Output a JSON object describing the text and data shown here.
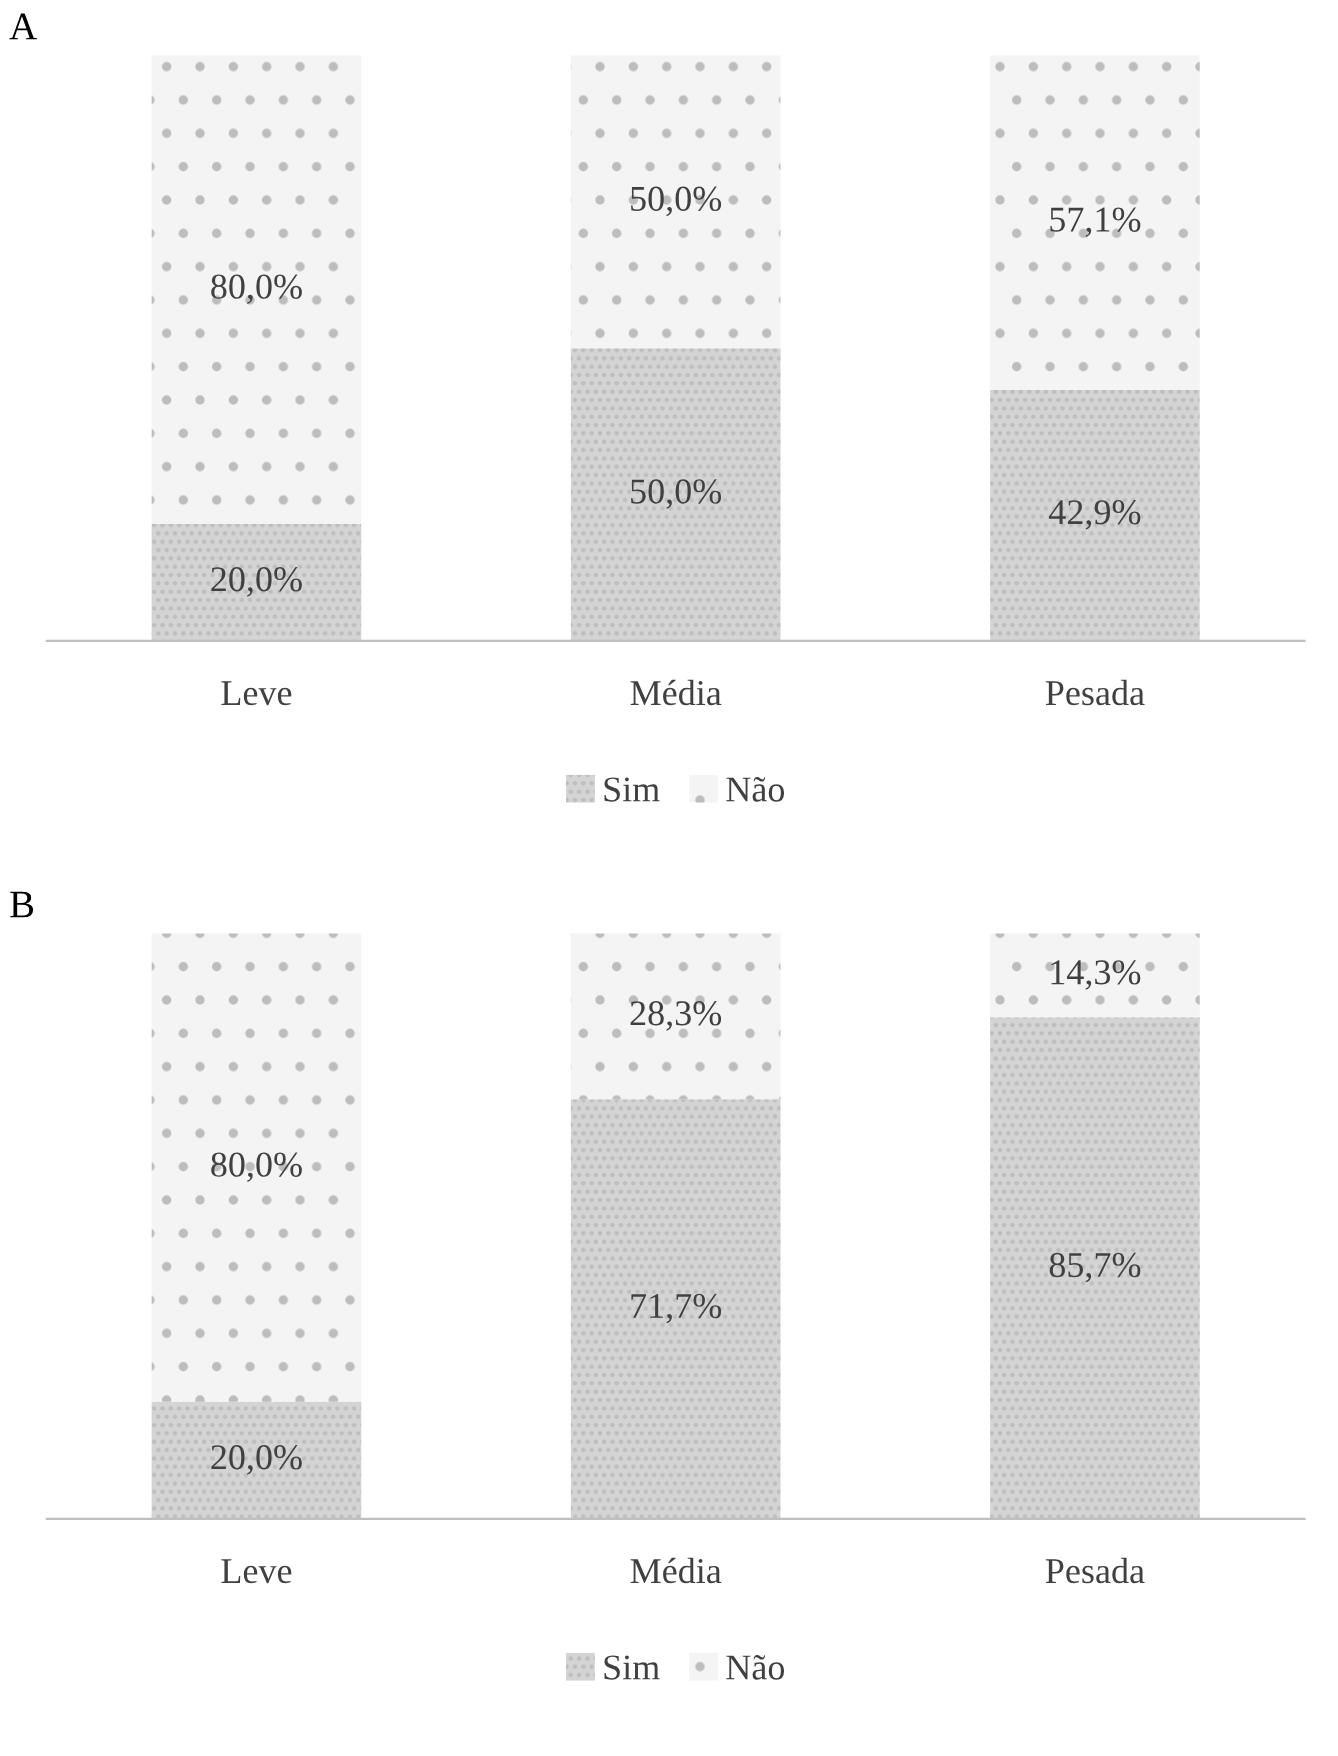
{
  "chart_data": [
    {
      "type": "bar",
      "title": "A",
      "categories": [
        "Leve",
        "Média",
        "Pesada"
      ],
      "stacked": true,
      "legend": "bottom",
      "grid": false,
      "series": [
        {
          "name": "Sim",
          "color": "#d4d4d4",
          "values": [
            20.0,
            50.0,
            42.9
          ],
          "value_labels": [
            "20,0%",
            "50,0%",
            "42,9%"
          ]
        },
        {
          "name": "Não",
          "color": "#f4f4f4",
          "values": [
            80.0,
            50.0,
            57.1
          ],
          "value_labels": [
            "80,0%",
            "50,0%",
            "57,1%"
          ]
        }
      ]
    },
    {
      "type": "bar",
      "title": "B",
      "categories": [
        "Leve",
        "Média",
        "Pesada"
      ],
      "stacked": true,
      "legend": "bottom",
      "grid": false,
      "series": [
        {
          "name": "Sim",
          "color": "#d4d4d4",
          "values": [
            20.0,
            71.7,
            85.7
          ],
          "value_labels": [
            "20,0%",
            "71,7%",
            "85,7%"
          ]
        },
        {
          "name": "Não",
          "color": "#f4f4f4",
          "values": [
            80.0,
            28.3,
            14.3
          ],
          "value_labels": [
            "80,0%",
            "28,3%",
            "14,3%"
          ]
        }
      ]
    }
  ]
}
